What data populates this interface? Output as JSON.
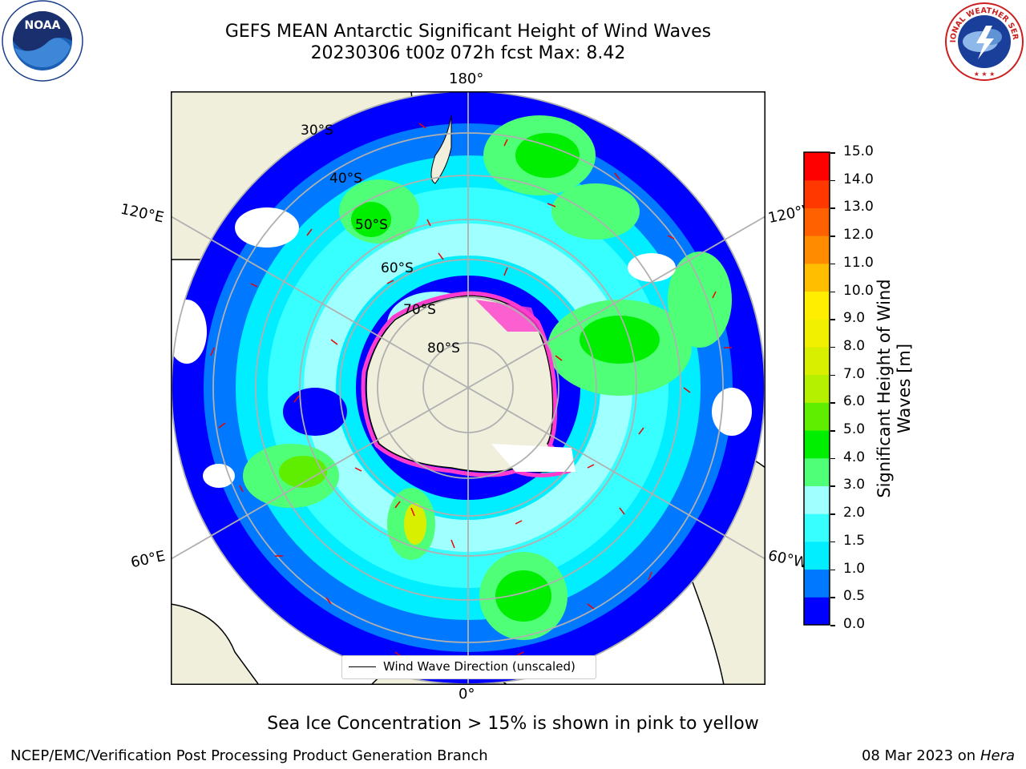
{
  "header": {
    "title_line1": "GEFS MEAN Antarctic Significant Height of Wind Waves",
    "title_line2": "20230306 t00z 072h fcst   Max: 8.42"
  },
  "map": {
    "projection": "south-polar-stereographic",
    "longitude_labels": {
      "top": "180°",
      "bottom": "0°",
      "upper_left": "120°E",
      "upper_right": "120°W",
      "lower_left": "60°E",
      "lower_right": "60°W"
    },
    "latitude_labels": [
      "30°S",
      "40°S",
      "50°S",
      "60°S",
      "70°S",
      "80°S"
    ],
    "legend": {
      "wind_wave_direction": "Wind Wave Direction (unscaled)"
    },
    "colors": {
      "land": "#efefdc",
      "grid": "#b0b0b0",
      "arrow": "#ee0000",
      "sea_ice": "#ff3ccd"
    }
  },
  "colorbar": {
    "label": "Significant Height of Wind Waves [m]",
    "ticks": [
      "0.0",
      "0.5",
      "1.0",
      "1.5",
      "2.0",
      "3.0",
      "4.0",
      "5.0",
      "6.0",
      "7.0",
      "8.0",
      "9.0",
      "10.0",
      "11.0",
      "12.0",
      "13.0",
      "14.0",
      "15.0"
    ],
    "colors": [
      "#0000ff",
      "#0078ff",
      "#00eeff",
      "#38ffff",
      "#a0ffff",
      "#50ff78",
      "#00ee00",
      "#60ee00",
      "#b4f000",
      "#d8f000",
      "#f0f000",
      "#ffee00",
      "#ffbe00",
      "#ff8c00",
      "#ff6000",
      "#ff3800",
      "#ff0000"
    ]
  },
  "subtitle": "Sea Ice Concentration > 15% is shown in pink to yellow",
  "footer": {
    "left": "NCEP/EMC/Verification Post Processing Product Generation Branch",
    "right_date": "08 Mar 2023 on",
    "right_host": "Hera"
  },
  "logos": {
    "noaa_text": "NOAA",
    "nws_text": "NATIONAL WEATHER SERVICE"
  }
}
